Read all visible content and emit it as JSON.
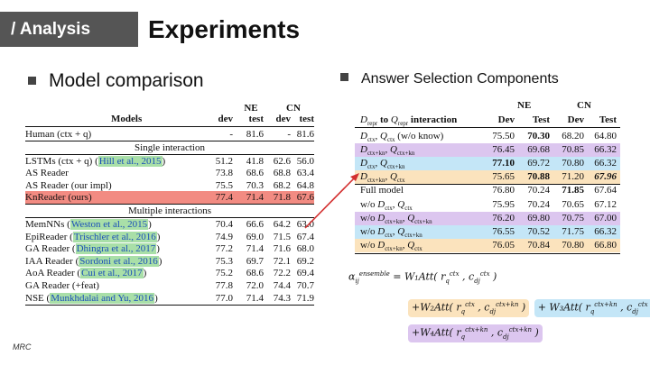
{
  "header": {
    "tag": "/ Analysis",
    "title": "Experiments"
  },
  "left": {
    "bullet": "Model comparison",
    "group_header": [
      "NE",
      "CN"
    ],
    "columns": [
      "Models",
      "dev",
      "test",
      "dev",
      "test"
    ],
    "top_rows": [
      {
        "model": "Human (ctx + q)",
        "cite": "",
        "vals": [
          "-",
          "81.6",
          "-",
          "81.6"
        ]
      }
    ],
    "section1": "Single interaction",
    "single": [
      {
        "model": "LSTMs (ctx + q) (",
        "cite": "Hill et al., 2015",
        "post": ")",
        "vals": [
          "51.2",
          "41.8",
          "62.6",
          "56.0"
        ]
      },
      {
        "model": "AS Reader",
        "cite": "",
        "post": "",
        "vals": [
          "73.8",
          "68.6",
          "68.8",
          "63.4"
        ]
      },
      {
        "model": "AS Reader (our impl)",
        "cite": "",
        "post": "",
        "vals": [
          "75.5",
          "70.3",
          "68.2",
          "64.8"
        ]
      },
      {
        "model": "KnReader (ours)",
        "cite": "",
        "post": "",
        "vals": [
          "77.4",
          "71.4",
          "71.8",
          "67.6"
        ]
      }
    ],
    "section2": "Multiple interactions",
    "multiple": [
      {
        "model": "MemNNs (",
        "cite": "Weston et al., 2015",
        "post": ")",
        "vals": [
          "70.4",
          "66.6",
          "64.2",
          "63.0"
        ]
      },
      {
        "model": "EpiReader (",
        "cite": "Trischler et al., 2016",
        "post": ")",
        "vals": [
          "74.9",
          "69.0",
          "71.5",
          "67.4"
        ]
      },
      {
        "model": "GA Reader (",
        "cite": "Dhingra et al., 2017",
        "post": ")",
        "vals": [
          "77.2",
          "71.4",
          "71.6",
          "68.0"
        ]
      },
      {
        "model": "IAA Reader (",
        "cite": "Sordoni et al., 2016",
        "post": ")",
        "vals": [
          "75.3",
          "69.7",
          "72.1",
          "69.2"
        ]
      },
      {
        "model": "AoA Reader (",
        "cite": "Cui et al., 2017",
        "post": ")",
        "vals": [
          "75.2",
          "68.6",
          "72.2",
          "69.4"
        ]
      },
      {
        "model": "GA Reader (+feat)",
        "cite": "",
        "post": "",
        "vals": [
          "77.8",
          "72.0",
          "74.4",
          "70.7"
        ]
      },
      {
        "model": "NSE (",
        "cite": "Munkhdalai and Yu, 2016",
        "post": ")",
        "vals": [
          "77.0",
          "71.4",
          "74.3",
          "71.9"
        ]
      }
    ]
  },
  "right": {
    "bullet": "Answer Selection Components",
    "group_header": [
      "NE",
      "CN"
    ],
    "columns": [
      "D_repr to Q_repr interaction",
      "Dev",
      "Test",
      "Dev",
      "Test"
    ],
    "rows": [
      {
        "label": "D_ctx, Q_ctx (w/o know)",
        "vals": [
          "75.50",
          "70.30",
          "68.20",
          "64.80"
        ],
        "color": ""
      },
      {
        "label": "D_ctx+kn, Q_ctx+kn",
        "vals": [
          "76.45",
          "69.68",
          "70.85",
          "66.32"
        ],
        "color": "#dcc6ef"
      },
      {
        "label": "D_ctx, Q_ctx+kn",
        "vals": [
          "77.10",
          "69.72",
          "70.80",
          "66.32"
        ],
        "color": "#c4e6f7"
      },
      {
        "label": "D_ctx+kn, Q_ctx",
        "vals": [
          "75.65",
          "70.88",
          "71.20",
          "67.96"
        ],
        "color": "#fbe3bd"
      },
      {
        "label": "Full model",
        "vals": [
          "76.80",
          "70.24",
          "71.85",
          "67.64"
        ],
        "color": ""
      },
      {
        "label": "w/o D_ctx, Q_ctx",
        "vals": [
          "75.95",
          "70.24",
          "70.65",
          "67.12"
        ],
        "color": ""
      },
      {
        "label": "w/o D_ctx+kn, Q_ctx+kn",
        "vals": [
          "76.20",
          "69.80",
          "70.75",
          "67.00"
        ],
        "color": "#dcc6ef"
      },
      {
        "label": "w/o D_ctx, Q_ctx+kn",
        "vals": [
          "76.55",
          "70.52",
          "71.75",
          "66.32"
        ],
        "color": "#c4e6f7"
      },
      {
        "label": "w/o D_ctx+kn, Q_ctx",
        "vals": [
          "76.05",
          "70.84",
          "70.80",
          "66.80"
        ],
        "color": "#fbe3bd"
      }
    ],
    "formula": {
      "line1": "α_ij^ensemble = W₁Att( r_q^ctx , c_dj^ctx )",
      "line2a": "+W₂Att( r_q^ctx , c_dj^ctx+kn )",
      "line2b": "+ W₃Att( r_q^ctx+kn , c_dj^ctx )",
      "line3": "+W₄Att( r_q^ctx+kn , c_dj^ctx+kn )",
      "colors": {
        "orange": "#fbe3bd",
        "blue": "#c4e6f7",
        "purple": "#dcc6ef"
      }
    }
  },
  "footer": "MRC",
  "highlight": {
    "kn_row": "#f28b82",
    "arrow": "#d32f2f"
  }
}
